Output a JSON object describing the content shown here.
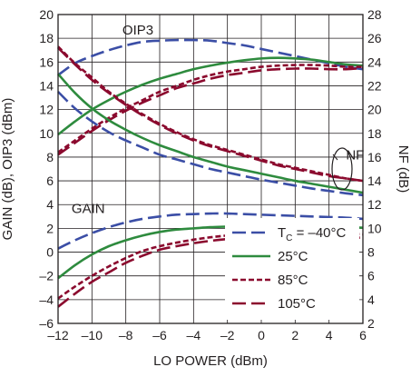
{
  "chart_data": {
    "type": "line",
    "xlabel": "LO POWER (dBm)",
    "ylabel_left": "GAIN (dB), OIP3 (dBm)",
    "ylabel_right": "NF (dB)",
    "xlim": [
      -12,
      6
    ],
    "ylim_left": [
      -6,
      20
    ],
    "ylim_right": [
      2,
      28
    ],
    "x_ticks": [
      -12,
      -10,
      -8,
      -6,
      -4,
      -2,
      0,
      2,
      4,
      6
    ],
    "x_tick_labels": [
      "–12",
      "–10",
      "–8",
      "–6",
      "–4",
      "–2",
      "0",
      "2",
      "4",
      "6"
    ],
    "y_left_ticks": [
      -6,
      -4,
      -2,
      0,
      2,
      4,
      6,
      8,
      10,
      12,
      14,
      16,
      18,
      20
    ],
    "y_left_tick_labels": [
      "–6",
      "–4",
      "–2",
      "0",
      "2",
      "4",
      "6",
      "8",
      "10",
      "12",
      "14",
      "16",
      "18",
      "20"
    ],
    "y_right_ticks": [
      2,
      4,
      6,
      8,
      10,
      12,
      14,
      16,
      18,
      20,
      22,
      24,
      26,
      28
    ],
    "y_right_tick_labels": [
      "2",
      "4",
      "6",
      "8",
      "10",
      "12",
      "14",
      "16",
      "18",
      "20",
      "22",
      "24",
      "26",
      "28"
    ],
    "grid": true,
    "legend": {
      "placement": "bottom-right",
      "entries": [
        {
          "label_main": "T",
          "label_sub": "C",
          "label_rest": " = –40°C",
          "color": "#3b4ea6",
          "dash": "long-dash"
        },
        {
          "label": "25°C",
          "color": "#2e8b3e",
          "dash": "solid"
        },
        {
          "label": "85°C",
          "color": "#8b0a2e",
          "dash": "short-dash"
        },
        {
          "label": "105°C",
          "color": "#8b0a2e",
          "dash": "long-dash"
        }
      ]
    },
    "annotations": [
      {
        "text": "OIP3",
        "x": -8.2,
        "y": 18.3
      },
      {
        "text": "GAIN",
        "x": -11.2,
        "y": 3.3
      },
      {
        "text": "NF",
        "x": 5.0,
        "y": 7.8
      }
    ],
    "x": [
      -12,
      -11,
      -10,
      -9,
      -8,
      -7,
      -6,
      -5,
      -4,
      -3,
      -2,
      -1,
      0,
      1,
      2,
      3,
      4,
      5,
      6
    ],
    "series": [
      {
        "group": "OIP3",
        "temp": "-40C",
        "axis": "left",
        "color": "#3b4ea6",
        "dash": "long-dash",
        "values": [
          14.9,
          15.9,
          16.5,
          17.0,
          17.4,
          17.7,
          17.8,
          17.85,
          17.85,
          17.8,
          17.6,
          17.4,
          17.1,
          16.8,
          16.5,
          16.2,
          15.9,
          15.6,
          15.4
        ]
      },
      {
        "group": "OIP3",
        "temp": "25C",
        "axis": "left",
        "color": "#2e8b3e",
        "dash": "solid",
        "values": [
          9.9,
          11.0,
          12.0,
          12.8,
          13.5,
          14.1,
          14.6,
          15.0,
          15.4,
          15.7,
          15.95,
          16.15,
          16.3,
          16.35,
          16.3,
          16.2,
          16.0,
          15.8,
          15.7
        ]
      },
      {
        "group": "OIP3",
        "temp": "85C",
        "axis": "left",
        "color": "#8b0a2e",
        "dash": "short-dash",
        "values": [
          8.4,
          9.4,
          10.4,
          11.3,
          12.1,
          12.8,
          13.5,
          14.0,
          14.5,
          14.9,
          15.2,
          15.4,
          15.6,
          15.7,
          15.75,
          15.75,
          15.7,
          15.6,
          15.6
        ]
      },
      {
        "group": "OIP3",
        "temp": "105C",
        "axis": "left",
        "color": "#8b0a2e",
        "dash": "long-dash",
        "values": [
          8.2,
          9.2,
          10.2,
          11.1,
          11.9,
          12.6,
          13.2,
          13.8,
          14.2,
          14.6,
          14.9,
          15.1,
          15.3,
          15.4,
          15.45,
          15.45,
          15.4,
          15.4,
          15.5
        ]
      },
      {
        "group": "NF",
        "temp": "-40C",
        "axis": "right",
        "color": "#3b4ea6",
        "dash": "long-dash",
        "values": [
          21.5,
          20.1,
          19.0,
          18.1,
          17.4,
          16.8,
          16.2,
          15.8,
          15.4,
          15.0,
          14.7,
          14.4,
          14.1,
          13.85,
          13.6,
          13.35,
          13.15,
          12.95,
          12.8
        ]
      },
      {
        "group": "NF",
        "temp": "25C",
        "axis": "right",
        "color": "#2e8b3e",
        "dash": "solid",
        "values": [
          23.0,
          21.4,
          20.1,
          19.1,
          18.3,
          17.6,
          17.0,
          16.5,
          16.0,
          15.6,
          15.2,
          14.9,
          14.6,
          14.3,
          14.0,
          13.75,
          13.5,
          13.25,
          13.0
        ]
      },
      {
        "group": "NF",
        "temp": "85C",
        "axis": "right",
        "color": "#8b0a2e",
        "dash": "short-dash",
        "values": [
          25.3,
          23.9,
          22.7,
          21.5,
          20.5,
          19.6,
          18.8,
          18.1,
          17.5,
          17.0,
          16.6,
          16.2,
          15.8,
          15.4,
          15.1,
          14.8,
          14.5,
          14.2,
          14.0
        ]
      },
      {
        "group": "NF",
        "temp": "105C",
        "axis": "right",
        "color": "#8b0a2e",
        "dash": "long-dash",
        "values": [
          25.2,
          23.8,
          22.5,
          21.4,
          20.4,
          19.5,
          18.7,
          18.0,
          17.4,
          16.9,
          16.5,
          16.1,
          15.7,
          15.3,
          15.0,
          14.7,
          14.4,
          14.2,
          14.0
        ]
      },
      {
        "group": "GAIN",
        "temp": "-40C",
        "axis": "left",
        "color": "#3b4ea6",
        "dash": "long-dash",
        "values": [
          0.3,
          1.0,
          1.6,
          2.1,
          2.5,
          2.8,
          3.0,
          3.15,
          3.2,
          3.25,
          3.25,
          3.2,
          3.15,
          3.1,
          3.05,
          3.0,
          2.95,
          2.9,
          2.8
        ]
      },
      {
        "group": "GAIN",
        "temp": "25C",
        "axis": "left",
        "color": "#2e8b3e",
        "dash": "solid",
        "values": [
          -2.2,
          -1.1,
          -0.2,
          0.5,
          1.0,
          1.4,
          1.7,
          1.9,
          2.0,
          2.1,
          2.15,
          2.2,
          2.2,
          2.2,
          2.2,
          2.2,
          2.15,
          2.1,
          2.05
        ]
      },
      {
        "group": "GAIN",
        "temp": "85C",
        "axis": "left",
        "color": "#8b0a2e",
        "dash": "short-dash",
        "values": [
          -3.9,
          -2.9,
          -2.0,
          -1.2,
          -0.5,
          0.1,
          0.5,
          0.8,
          1.05,
          1.25,
          1.4,
          1.5,
          1.55,
          1.6,
          1.6,
          1.6,
          1.6,
          1.55,
          1.5
        ]
      },
      {
        "group": "GAIN",
        "temp": "105C",
        "axis": "left",
        "color": "#8b0a2e",
        "dash": "long-dash",
        "values": [
          -4.6,
          -3.5,
          -2.5,
          -1.7,
          -0.9,
          -0.3,
          0.2,
          0.5,
          0.75,
          0.95,
          1.1,
          1.2,
          1.25,
          1.3,
          1.3,
          1.3,
          1.3,
          1.25,
          1.2
        ]
      }
    ]
  }
}
